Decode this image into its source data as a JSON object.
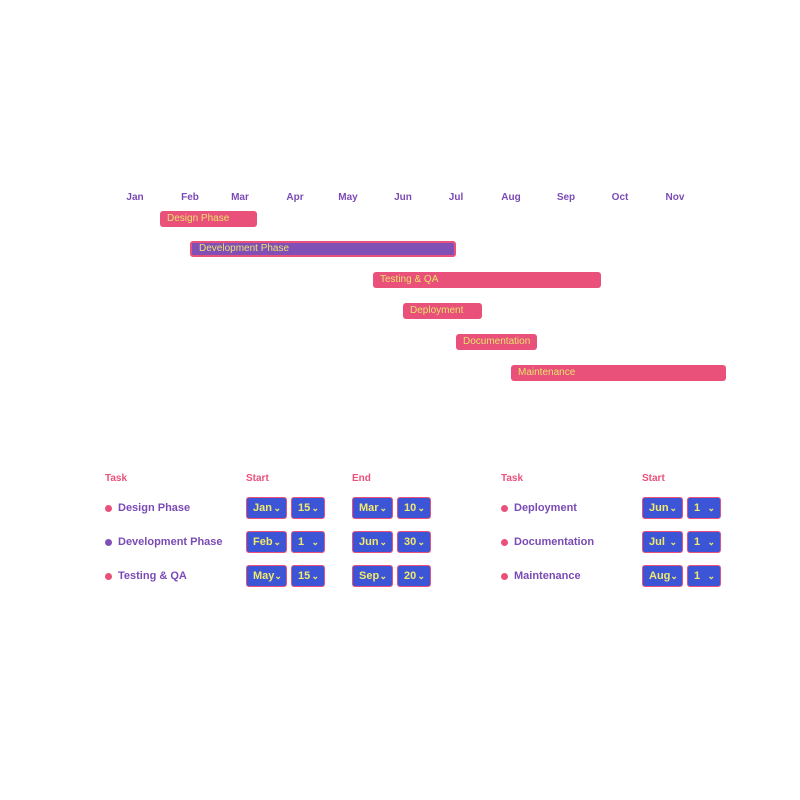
{
  "months": [
    "Jan",
    "Feb",
    "Mar",
    "Apr",
    "May",
    "Jun",
    "Jul",
    "Aug",
    "Sep",
    "Oct",
    "Nov"
  ],
  "bars": [
    {
      "name": "Design Phase",
      "color": "#e9507a"
    },
    {
      "name": "Development Phase",
      "color": "#8150b6"
    },
    {
      "name": "Testing & QA",
      "color": "#e9507a"
    },
    {
      "name": "Deployment",
      "color": "#e9507a"
    },
    {
      "name": "Documentation",
      "color": "#e9507a"
    },
    {
      "name": "Maintenance",
      "color": "#e9507a"
    }
  ],
  "table": {
    "headers": {
      "task": "Task",
      "start": "Start",
      "end": "End"
    },
    "left": [
      {
        "name": "Design Phase",
        "dot": "#e9507a",
        "start": {
          "month": "Jan",
          "day": "15"
        },
        "end": {
          "month": "Mar",
          "day": "10"
        }
      },
      {
        "name": "Development Phase",
        "dot": "#8150b6",
        "start": {
          "month": "Feb",
          "day": "1"
        },
        "end": {
          "month": "Jun",
          "day": "30"
        }
      },
      {
        "name": "Testing & QA",
        "dot": "#e9507a",
        "start": {
          "month": "May",
          "day": "15"
        },
        "end": {
          "month": "Sep",
          "day": "20"
        }
      }
    ],
    "right": [
      {
        "name": "Deployment",
        "dot": "#e9507a",
        "start": {
          "month": "Jun",
          "day": "1"
        }
      },
      {
        "name": "Documentation",
        "dot": "#e9507a",
        "start": {
          "month": "Jul",
          "day": "1"
        }
      },
      {
        "name": "Maintenance",
        "dot": "#e9507a",
        "start": {
          "month": "Aug",
          "day": "1"
        }
      }
    ]
  },
  "colors": {
    "pink": "#e9507a",
    "violet": "#8150b6",
    "select_bg": "#3c55d6",
    "select_text": "#f2ea6a"
  }
}
